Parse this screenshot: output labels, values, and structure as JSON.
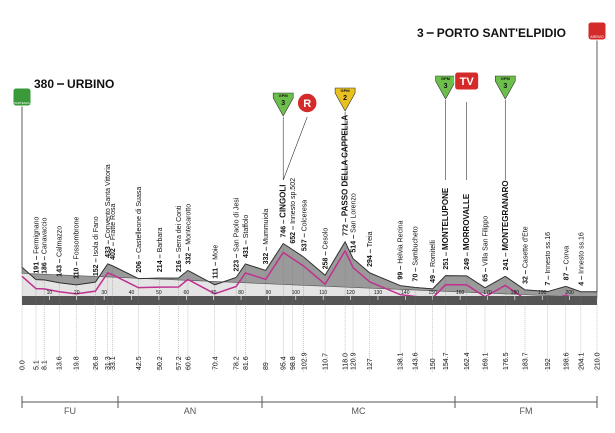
{
  "chart_data": {
    "type": "area",
    "x": [
      {
        "value": 0,
        "label": "0.0"
      },
      5.1,
      8.1,
      13.6,
      19.8,
      26.8,
      31.3,
      33.1,
      42.5,
      50.2,
      57.2,
      60.6,
      70.4,
      78.2,
      81.6,
      89.0,
      95.4,
      98.8,
      102.9,
      110.7,
      {
        "value": 118,
        "label": "118.0"
      },
      120.9,
      127.0,
      138.1,
      143.6,
      150.0,
      154.7,
      162.4,
      169.1,
      176.5,
      183.7,
      192.0,
      198.6,
      204.1,
      {
        "value": 210,
        "label": "210.0"
      }
    ],
    "values": [
      380,
      191,
      186,
      143,
      110,
      152,
      433,
      402,
      206,
      214,
      216,
      332,
      111,
      223,
      431,
      332,
      746,
      652,
      537,
      258,
      772,
      514,
      294,
      99,
      70,
      49,
      251,
      249,
      65,
      241,
      32,
      7,
      87,
      4,
      3
    ],
    "names": [
      "URBINO",
      "Fermignano",
      "Canavaccio",
      "Calmazzo",
      "Fossombrone",
      "Isola di Fano",
      "Convento Santa Vittoria",
      "Fratte Rosa",
      "Castelleone di Suasa",
      "Barbara",
      "Serra dei Conti",
      "Montecarotto",
      "Moie",
      "San Paolo di Jesi",
      "Staffolo",
      "Mummuiola",
      "CINGOLI",
      "Innesto sp.502",
      "Colceresa",
      "Cesolo",
      "PASSO DELLA CAPPELLA",
      "San Lorenzo",
      "Treia",
      "Helvia Recina",
      "Sambucheto",
      "Romitelli",
      "MONTELUPONE",
      "MORROVALLE",
      "Villa San Filippo",
      "MONTEGRANARO",
      "Casette d'Ete",
      "Innesto ss.16",
      "Corva",
      "Innesto ss.16",
      "PORTO SANT'ELPIDIO"
    ],
    "xlim": [
      0,
      210
    ],
    "xticks": [
      10,
      20,
      30,
      40,
      50,
      60,
      70,
      80,
      90,
      100,
      110,
      120,
      130,
      140,
      150,
      160,
      170,
      180,
      190,
      200
    ],
    "ylim": [
      0,
      800
    ],
    "color": "#9a9a9a",
    "provinces": [
      "FU",
      "AN",
      "MC",
      "FM"
    ],
    "start_sign": "PARTENZA",
    "finish_sign": "ARRIVO",
    "markers": [
      {
        "at": 16,
        "kind": "gpm",
        "label": "GPM",
        "category": "3"
      },
      {
        "at": 16,
        "kind": "sprint",
        "label": "R"
      },
      {
        "at": 20,
        "kind": "gpm",
        "label": "GPM",
        "category": "2"
      },
      {
        "at": 26,
        "kind": "gpm",
        "label": "GPM",
        "category": "3"
      },
      {
        "at": 27,
        "kind": "tv",
        "label": "TV"
      },
      {
        "at": 29,
        "kind": "gpm",
        "label": "GPM",
        "category": "3"
      }
    ]
  }
}
